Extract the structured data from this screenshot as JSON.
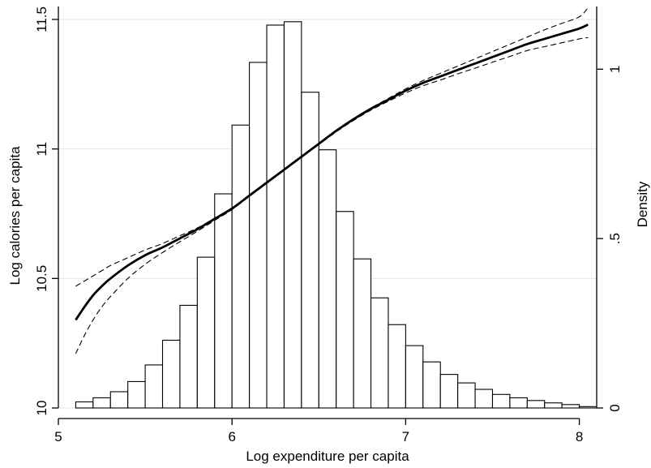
{
  "chart_data": {
    "type": "bar",
    "xlabel": "Log expenditure per capita",
    "ylabel": "Log calories per capita",
    "y2label": "Density",
    "xlim": [
      5,
      8.1
    ],
    "ylim": [
      10,
      11.55
    ],
    "y2lim": [
      0,
      1.185
    ],
    "x_ticks": [
      5,
      6,
      7,
      8
    ],
    "x_tick_labels": [
      "5",
      "6",
      "7",
      "8"
    ],
    "y_ticks": [
      10,
      10.5,
      11,
      11.5
    ],
    "y_tick_labels": [
      "10",
      "10.5",
      "11",
      "11.5"
    ],
    "y2_ticks": [
      0,
      0.5,
      1
    ],
    "y2_tick_labels": [
      "0",
      ".5",
      "1"
    ],
    "grid": true,
    "histogram": {
      "bin_width": 0.1,
      "bin_starts": [
        5.1,
        5.2,
        5.3,
        5.4,
        5.5,
        5.6,
        5.7,
        5.8,
        5.9,
        6.0,
        6.1,
        6.2,
        6.3,
        6.4,
        6.5,
        6.6,
        6.7,
        6.8,
        6.9,
        7.0,
        7.1,
        7.2,
        7.3,
        7.4,
        7.5,
        7.6,
        7.7,
        7.8,
        7.9,
        8.0
      ],
      "density": [
        0.018,
        0.03,
        0.048,
        0.078,
        0.127,
        0.2,
        0.303,
        0.445,
        0.632,
        0.835,
        1.02,
        1.13,
        1.14,
        0.932,
        0.762,
        0.58,
        0.44,
        0.325,
        0.246,
        0.184,
        0.136,
        0.099,
        0.074,
        0.055,
        0.04,
        0.03,
        0.022,
        0.015,
        0.01,
        0.004
      ]
    },
    "series": [
      {
        "style": "solid",
        "x": [
          5.1,
          5.15,
          5.2,
          5.25,
          5.3,
          5.4,
          5.5,
          5.6,
          5.7,
          5.8,
          5.9,
          6.0,
          6.1,
          6.2,
          6.3,
          6.4,
          6.5,
          6.6,
          6.7,
          6.8,
          6.9,
          7.0,
          7.1,
          7.2,
          7.3,
          7.4,
          7.5,
          7.6,
          7.7,
          7.8,
          7.9,
          8.0,
          8.05
        ],
        "y": [
          10.34,
          10.39,
          10.435,
          10.47,
          10.5,
          10.55,
          10.59,
          10.62,
          10.655,
          10.69,
          10.73,
          10.77,
          10.82,
          10.87,
          10.92,
          10.97,
          11.02,
          11.07,
          11.115,
          11.155,
          11.19,
          11.225,
          11.255,
          11.28,
          11.305,
          11.33,
          11.355,
          11.38,
          11.405,
          11.425,
          11.445,
          11.465,
          11.48
        ]
      },
      {
        "style": "dashed",
        "x": [
          5.1,
          5.15,
          5.2,
          5.25,
          5.3,
          5.4,
          5.5,
          5.6,
          5.7,
          5.8,
          5.9,
          6.0,
          6.1,
          6.2,
          6.3,
          6.4,
          6.5,
          6.6,
          6.7,
          6.8,
          6.9,
          7.0,
          7.1,
          7.2,
          7.3,
          7.4,
          7.5,
          7.6,
          7.7,
          7.8,
          7.9,
          8.0,
          8.05
        ],
        "y": [
          10.47,
          10.49,
          10.51,
          10.53,
          10.55,
          10.58,
          10.61,
          10.635,
          10.665,
          10.695,
          10.733,
          10.773,
          10.822,
          10.872,
          10.922,
          10.972,
          11.022,
          11.072,
          11.118,
          11.158,
          11.195,
          11.232,
          11.264,
          11.292,
          11.32,
          11.348,
          11.376,
          11.404,
          11.432,
          11.46,
          11.485,
          11.51,
          11.545
        ]
      },
      {
        "style": "dashed",
        "x": [
          5.1,
          5.15,
          5.2,
          5.25,
          5.3,
          5.4,
          5.5,
          5.6,
          5.7,
          5.8,
          5.9,
          6.0,
          6.1,
          6.2,
          6.3,
          6.4,
          6.5,
          6.6,
          6.7,
          6.8,
          6.9,
          7.0,
          7.1,
          7.2,
          7.3,
          7.4,
          7.5,
          7.6,
          7.7,
          7.8,
          7.9,
          8.0,
          8.05
        ],
        "y": [
          10.21,
          10.28,
          10.34,
          10.39,
          10.43,
          10.5,
          10.555,
          10.6,
          10.642,
          10.682,
          10.724,
          10.766,
          10.817,
          10.867,
          10.917,
          10.967,
          11.017,
          11.066,
          11.11,
          11.15,
          11.184,
          11.216,
          11.244,
          11.266,
          11.29,
          11.312,
          11.335,
          11.357,
          11.38,
          11.395,
          11.41,
          11.425,
          11.43
        ]
      }
    ]
  }
}
